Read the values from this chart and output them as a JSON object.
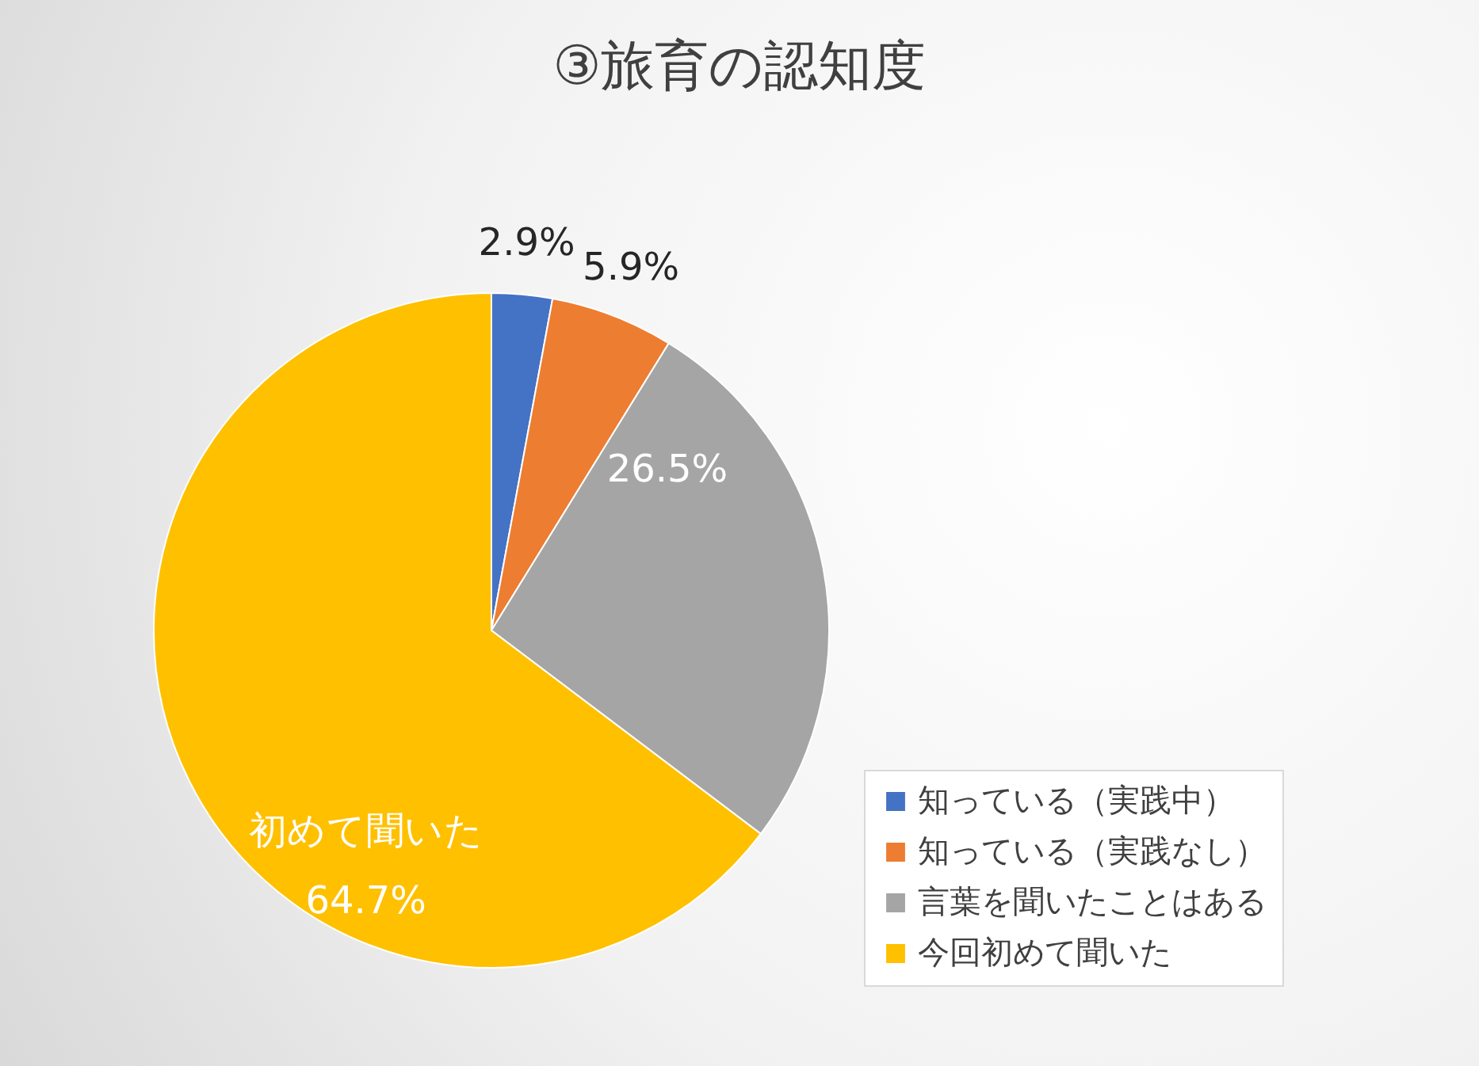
{
  "chart_data": {
    "type": "pie",
    "title": "③旅育の認知度",
    "categories": [
      "知っている（実践中）",
      "知っている（実践なし）",
      "言葉を聞いたことはある",
      "今回初めて聞いた"
    ],
    "values": [
      2.9,
      5.9,
      26.5,
      64.7
    ],
    "colors": [
      "#4472c4",
      "#ed7d31",
      "#a5a5a5",
      "#ffc000"
    ],
    "value_labels": [
      "2.9%",
      "5.9%",
      "26.5%",
      "初めて聞いた\n64.7%"
    ],
    "legend": "bottom right"
  }
}
